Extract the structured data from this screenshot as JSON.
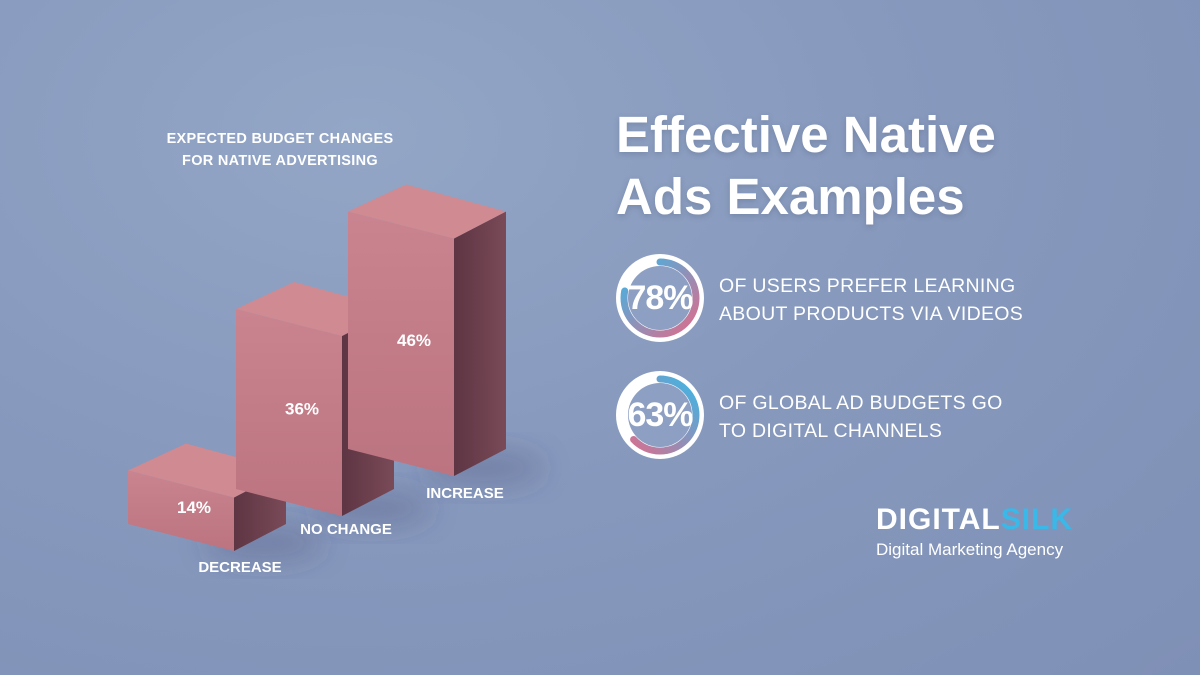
{
  "chart_data": {
    "type": "bar",
    "title_lines": [
      "EXPECTED BUDGET CHANGES",
      "FOR NATIVE ADVERTISING"
    ],
    "categories": [
      "DECREASE",
      "NO CHANGE",
      "INCREASE"
    ],
    "values": [
      14,
      36,
      46
    ],
    "value_labels": [
      "14%",
      "36%",
      "46%"
    ],
    "unit": "%",
    "colors": {
      "top": "#cf8a92",
      "front": "#c37a85",
      "side": "#6b3f4b"
    }
  },
  "headline": {
    "line1": "Effective Native",
    "line2": "Ads Examples"
  },
  "stats": [
    {
      "value": 78,
      "label": "78%",
      "text_lines": [
        "OF USERS PREFER LEARNING",
        "ABOUT PRODUCTS VIA VIDEOS"
      ],
      "gradient": [
        "#3ab8e8",
        "#e06b8a"
      ]
    },
    {
      "value": 63,
      "label": "63%",
      "text_lines": [
        "OF GLOBAL AD BUDGETS GO",
        "TO DIGITAL CHANNELS"
      ],
      "gradient": [
        "#e06b8a",
        "#3ab8e8"
      ]
    }
  ],
  "brand": {
    "name_part1": "DIGITAL",
    "name_part2": "SILK",
    "tagline": "Digital Marketing Agency",
    "accent_color": "#3ab8e8"
  }
}
